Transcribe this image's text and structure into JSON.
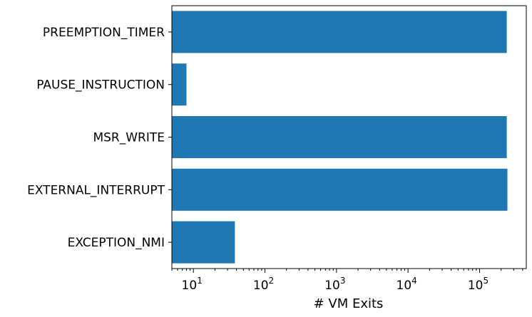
{
  "chart_data": {
    "type": "bar",
    "orientation": "horizontal",
    "categories": [
      "EXCEPTION_NMI",
      "EXTERNAL_INTERRUPT",
      "MSR_WRITE",
      "PAUSE_INSTRUCTION",
      "PREEMPTION_TIMER"
    ],
    "values": [
      38,
      245000,
      240000,
      8,
      240000
    ],
    "xlabel": "# VM Exits",
    "ylabel": "",
    "title": "",
    "xscale": "log",
    "xlim": [
      5,
      450000
    ],
    "xticks": [
      {
        "base": "10",
        "exp": "1",
        "value": 10
      },
      {
        "base": "10",
        "exp": "2",
        "value": 100
      },
      {
        "base": "10",
        "exp": "3",
        "value": 1000
      },
      {
        "base": "10",
        "exp": "4",
        "value": 10000
      },
      {
        "base": "10",
        "exp": "5",
        "value": 100000
      }
    ],
    "grid": false,
    "legend": "none",
    "bar_color": "#1f77b4"
  }
}
